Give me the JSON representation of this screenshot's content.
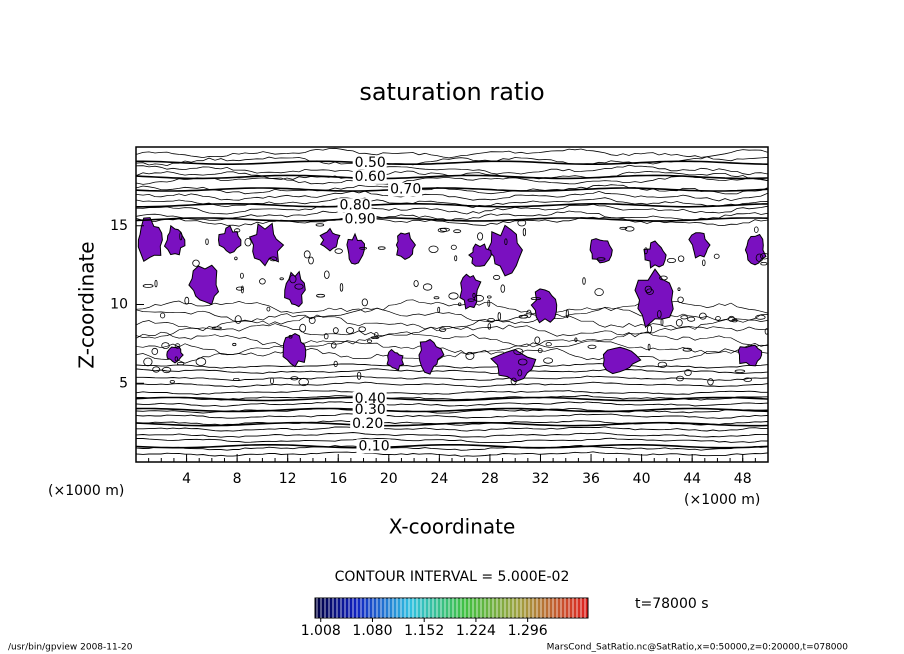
{
  "chart_data": {
    "type": "contour",
    "title": "saturation ratio",
    "x_label": "X-coordinate",
    "y_label": "Z-coordinate",
    "x_unit": "(×1000 m)",
    "xlim": [
      0,
      50
    ],
    "ylim": [
      0,
      20
    ],
    "xticks": [
      4,
      8,
      12,
      16,
      20,
      24,
      28,
      32,
      36,
      40,
      44,
      48
    ],
    "yticks": [
      5,
      10,
      15
    ],
    "contours": [
      {
        "value": 0.5,
        "label": "0.50",
        "x": 17.3,
        "z": 19.0
      },
      {
        "value": 0.6,
        "label": "0.60",
        "x": 17.3,
        "z": 18.1
      },
      {
        "value": 0.7,
        "label": "0.70",
        "x": 20.1,
        "z": 17.3
      },
      {
        "value": 0.8,
        "label": "0.80",
        "x": 16.1,
        "z": 16.3
      },
      {
        "value": 0.9,
        "label": "0.90",
        "x": 16.5,
        "z": 15.4
      },
      {
        "value": 0.4,
        "label": "0.40",
        "x": 17.3,
        "z": 4.0
      },
      {
        "value": 0.3,
        "label": "0.30",
        "x": 17.3,
        "z": 3.3
      },
      {
        "value": 0.2,
        "label": "0.20",
        "x": 17.1,
        "z": 2.4
      },
      {
        "value": 0.1,
        "label": "0.10",
        "x": 17.6,
        "z": 1.0
      }
    ],
    "contour_interval": "CONTOUR INTERVAL = 5.000E-02",
    "colorbar": {
      "lim": [
        1.0,
        1.38
      ],
      "ticks": [
        {
          "value": 1.008,
          "label": "1.008"
        },
        {
          "value": 1.08,
          "label": "1.080"
        },
        {
          "value": 1.152,
          "label": "1.152"
        },
        {
          "value": 1.224,
          "label": "1.224"
        },
        {
          "value": 1.296,
          "label": "1.296"
        }
      ]
    },
    "time_label": "t=78000 s",
    "footer_left": "/usr/bin/gpview  2008-11-20",
    "footer_right": "MarsCond_SatRatio.nc@SatRatio,x=0:50000,z=0:20000,t=078000"
  }
}
